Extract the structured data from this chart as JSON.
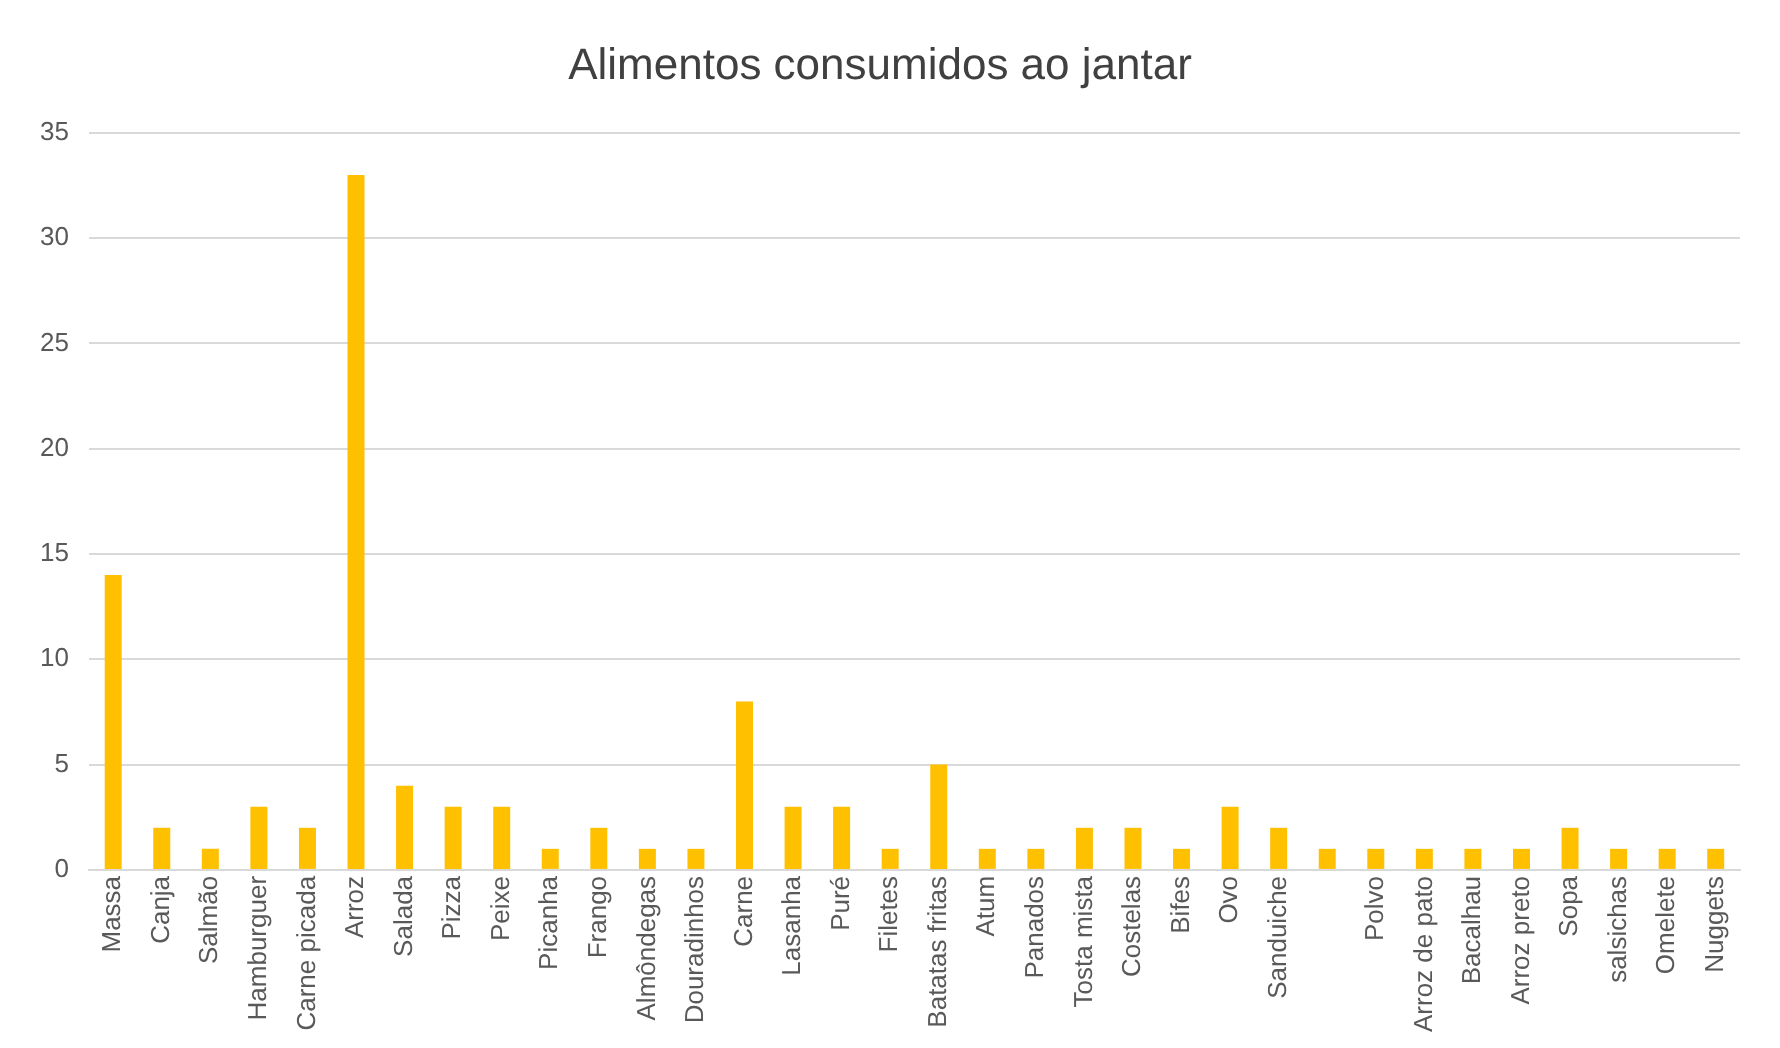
{
  "chart_data": {
    "type": "bar",
    "title": "Alimentos consumidos ao jantar",
    "categories": [
      "Massa",
      "Canja",
      "Salmão",
      "Hamburguer",
      "Carne picada",
      "Arroz",
      "Salada",
      "Pizza",
      "Peixe",
      "Picanha",
      "Frango",
      "Almôndegas",
      "Douradinhos",
      "Carne",
      "Lasanha",
      "Puré",
      "Filetes",
      "Batatas fritas",
      "Atum",
      "Panados",
      "Tosta mista",
      "Costelas",
      "Bifes",
      "Ovo",
      "Sanduiche",
      null,
      "Polvo",
      "Arroz de pato",
      "Bacalhau",
      "Arroz preto",
      "Sopa",
      "salsichas",
      "Omelete",
      "Nuggets"
    ],
    "values": [
      14,
      2,
      1,
      3,
      2,
      33,
      4,
      3,
      3,
      1,
      2,
      1,
      1,
      8,
      3,
      3,
      1,
      5,
      1,
      1,
      2,
      2,
      1,
      3,
      2,
      1,
      1,
      1,
      1,
      1,
      2,
      1,
      1,
      1
    ],
    "color": "#ffc000",
    "ylim": [
      0,
      35
    ],
    "yticks": [
      0,
      5,
      10,
      15,
      20,
      25,
      30,
      35
    ],
    "grid": "y",
    "legend": false
  }
}
